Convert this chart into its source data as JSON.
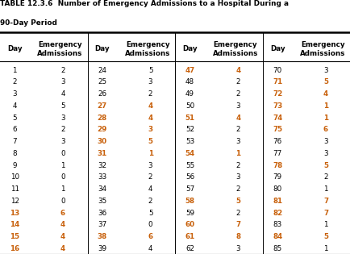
{
  "title_line1": "TABLE 12.3.6  Number of Emergency Admissions to a Hospital During a",
  "title_line2": "90-Day Period",
  "col1_days": [
    1,
    2,
    3,
    4,
    5,
    6,
    7,
    8,
    9,
    10,
    11,
    12,
    13,
    14,
    15,
    16
  ],
  "col1_admissions": [
    2,
    3,
    4,
    5,
    3,
    2,
    3,
    0,
    1,
    0,
    1,
    0,
    6,
    4,
    4,
    4
  ],
  "col2_days": [
    24,
    25,
    26,
    27,
    28,
    29,
    30,
    31,
    32,
    33,
    34,
    35,
    36,
    37,
    38,
    39
  ],
  "col2_admissions": [
    5,
    3,
    2,
    4,
    4,
    3,
    5,
    1,
    3,
    2,
    4,
    2,
    5,
    0,
    6,
    4
  ],
  "col3_days": [
    47,
    48,
    49,
    50,
    51,
    52,
    53,
    54,
    55,
    56,
    57,
    58,
    59,
    60,
    61,
    62
  ],
  "col3_admissions": [
    4,
    2,
    2,
    3,
    4,
    2,
    3,
    1,
    2,
    3,
    2,
    5,
    2,
    7,
    8,
    3
  ],
  "col4_days": [
    70,
    71,
    72,
    73,
    74,
    75,
    76,
    77,
    78,
    79,
    80,
    81,
    82,
    83,
    84,
    85
  ],
  "col4_admissions": [
    3,
    5,
    4,
    1,
    1,
    6,
    3,
    3,
    5,
    2,
    1,
    7,
    7,
    1,
    5,
    1
  ],
  "header_day": "Day",
  "header_admissions": "Emergency\nAdmissions",
  "bg_color": "#ffffff",
  "title_color": "#000000",
  "header_color": "#000000",
  "data_color_normal": "#000000",
  "data_color_highlight": "#c8600a",
  "highlight_days_col1": [
    13,
    14,
    15,
    16
  ],
  "highlight_days_col2": [
    27,
    28,
    29,
    30,
    31,
    38
  ],
  "highlight_days_col3": [
    47,
    51,
    54,
    58,
    60,
    61
  ],
  "highlight_days_col4": [
    71,
    72,
    73,
    74,
    75,
    78,
    81,
    82,
    84
  ]
}
